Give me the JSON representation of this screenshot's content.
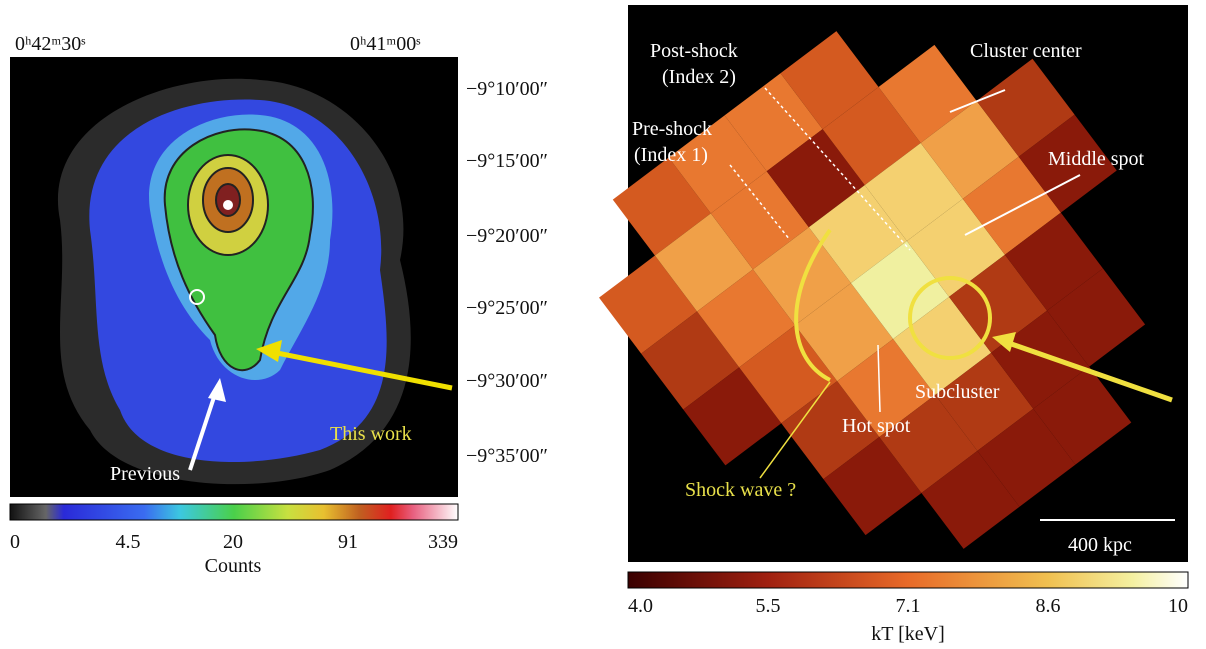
{
  "left_panel": {
    "ra_labels": [
      "0ʰ42ᵐ30ˢ",
      "0ʰ41ᵐ00ˢ"
    ],
    "dec_labels": [
      "−9°10′00″",
      "−9°15′00″",
      "−9°20′00″",
      "−9°25′00″",
      "−9°30′00″",
      "−9°35′00″"
    ],
    "annotations": {
      "this_work": "This work",
      "previous": "Previous"
    },
    "colorbar": {
      "ticks": [
        "0",
        "4.5",
        "20",
        "91",
        "339"
      ],
      "label": "Counts"
    }
  },
  "right_panel": {
    "annotations": {
      "post_shock": [
        "Post-shock",
        "(Index 2)"
      ],
      "cluster_center": "Cluster center",
      "pre_shock": [
        "Pre-shock",
        "(Index 1)"
      ],
      "middle_spot": "Middle spot",
      "subcluster": "Subcluster",
      "hot_spot": "Hot spot",
      "shock_wave": "Shock wave ?",
      "scale_bar": "400 kpc"
    },
    "colorbar": {
      "ticks": [
        "4.0",
        "5.5",
        "7.1",
        "8.6",
        "10"
      ],
      "label": "kT [keV]"
    }
  }
}
